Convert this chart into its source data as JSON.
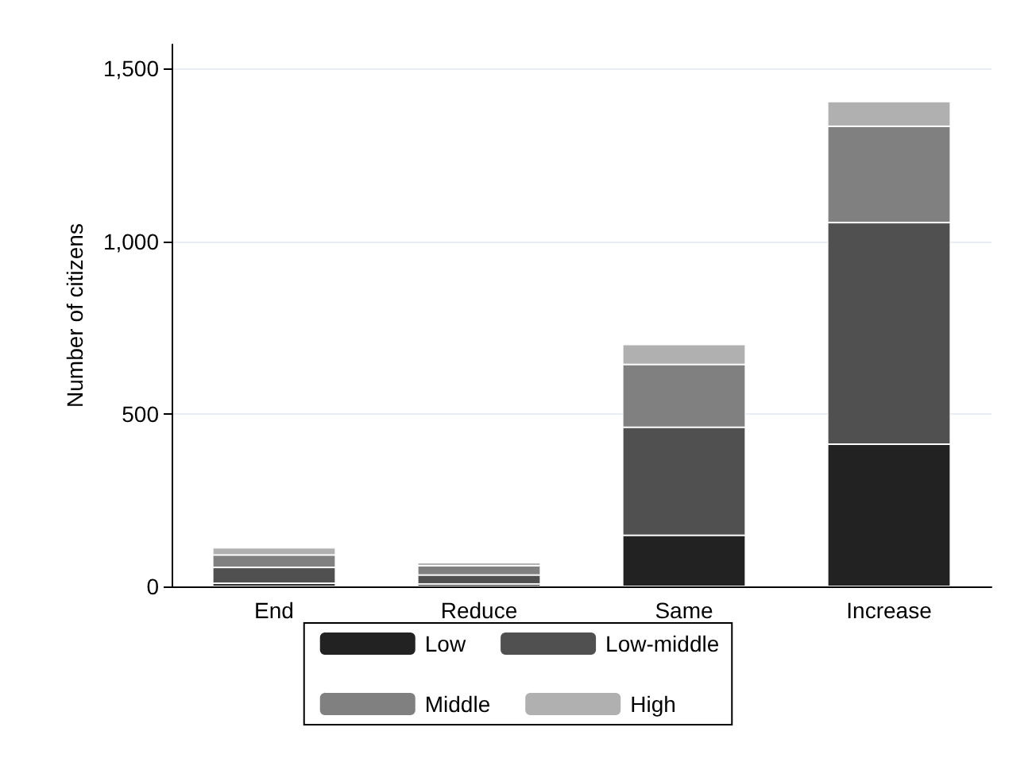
{
  "chart_data": {
    "type": "bar",
    "stacked": true,
    "ylabel": "Number of citizens",
    "categories": [
      "End",
      "Reduce",
      "Same",
      "Increase"
    ],
    "series": [
      {
        "name": "Low",
        "color": "#222222",
        "values": [
          9,
          7,
          148,
          412
        ]
      },
      {
        "name": "Low-middle",
        "color": "#505050",
        "values": [
          46,
          26,
          313,
          642
        ]
      },
      {
        "name": "Middle",
        "color": "#808080",
        "values": [
          36,
          27,
          182,
          279
        ]
      },
      {
        "name": "High",
        "color": "#b0b0b0",
        "values": [
          21,
          9,
          58,
          72
        ]
      }
    ],
    "ylim": [
      0,
      1570
    ],
    "yticks": [
      0,
      500,
      {
        "value": 1000,
        "label": "1,000"
      },
      {
        "value": 1500,
        "label": "1,500"
      }
    ],
    "grid": "y",
    "legend": "bottom"
  }
}
